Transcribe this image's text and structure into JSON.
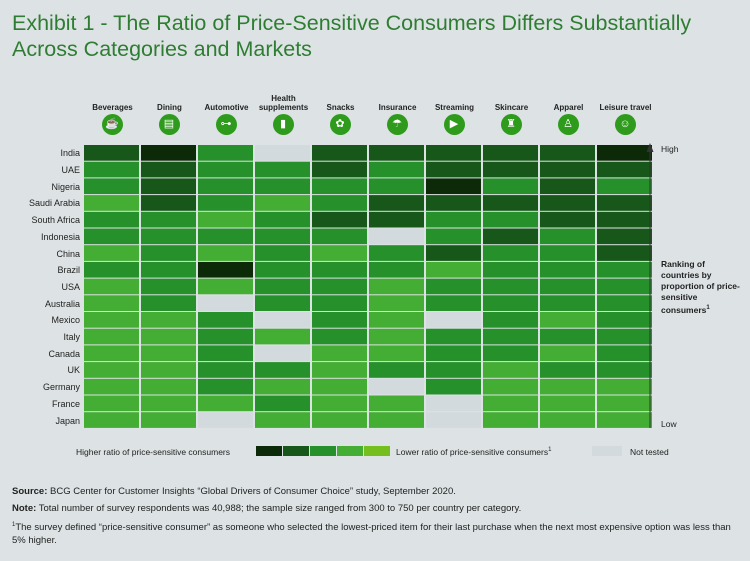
{
  "title": "Exhibit 1 - The Ratio of Price-Sensitive Consumers Differs Substantially Across Categories and Markets",
  "axis": {
    "high_label": "High",
    "low_label": "Low",
    "ranking_label": "Ranking of countries by proportion of price-sensitive consumers",
    "ranking_footnote_mark": "1"
  },
  "legend": {
    "higher_label": "Higher ratio of price-sensitive consumers",
    "lower_label": "Lower ratio of price-sensitive consumers",
    "lower_footnote_mark": "1",
    "not_tested_label": "Not tested"
  },
  "colors": {
    "level_1": "#0c2a08",
    "level_2": "#17581a",
    "level_3": "#26902b",
    "level_4": "#44ad33",
    "level_5": "#74be1e",
    "not_tested": "#d3dade",
    "icon": "#2f9b1d"
  },
  "category_icons": [
    "cup-icon",
    "dining-icon",
    "car-icon",
    "pill-bottle-icon",
    "snack-icon",
    "umbrella-icon",
    "play-icon",
    "lotion-icon",
    "dress-icon",
    "traveler-icon"
  ],
  "category_glyphs": [
    "☕",
    "▤",
    "⊶",
    "▮",
    "✿",
    "☂",
    "▶",
    "♜",
    "♙",
    "☺"
  ],
  "chart_data": {
    "type": "heatmap",
    "title": "Exhibit 1 - The Ratio of Price-Sensitive Consumers Differs Substantially Across Categories and Markets",
    "categories": [
      "Beverages",
      "Dining",
      "Automotive",
      "Health supplements",
      "Snacks",
      "Insurance",
      "Streaming",
      "Skincare",
      "Apparel",
      "Leisure travel"
    ],
    "countries": [
      "India",
      "UAE",
      "Nigeria",
      "Saudi Arabia",
      "South Africa",
      "Indonesia",
      "China",
      "Brazil",
      "USA",
      "Australia",
      "Mexico",
      "Italy",
      "Canada",
      "UK",
      "Germany",
      "France",
      "Japan"
    ],
    "scale": "1 = higher ratio of price-sensitive consumers, 5 = lower ratio, 0 = not tested",
    "values": [
      [
        2,
        1,
        3,
        0,
        2,
        2,
        2,
        2,
        2,
        1
      ],
      [
        3,
        2,
        3,
        3,
        2,
        3,
        2,
        2,
        2,
        2
      ],
      [
        3,
        2,
        3,
        3,
        3,
        3,
        1,
        3,
        2,
        3
      ],
      [
        4,
        2,
        3,
        4,
        3,
        2,
        2,
        2,
        2,
        2
      ],
      [
        3,
        3,
        4,
        3,
        2,
        2,
        3,
        3,
        2,
        2
      ],
      [
        3,
        3,
        3,
        3,
        3,
        0,
        3,
        2,
        3,
        2
      ],
      [
        4,
        3,
        4,
        3,
        4,
        3,
        2,
        3,
        3,
        2
      ],
      [
        3,
        3,
        1,
        3,
        3,
        3,
        4,
        3,
        3,
        3
      ],
      [
        4,
        3,
        4,
        3,
        3,
        4,
        3,
        3,
        3,
        3
      ],
      [
        4,
        3,
        0,
        3,
        3,
        4,
        3,
        3,
        3,
        3
      ],
      [
        4,
        4,
        3,
        0,
        3,
        4,
        0,
        3,
        4,
        3
      ],
      [
        4,
        4,
        3,
        4,
        3,
        4,
        3,
        3,
        3,
        3
      ],
      [
        4,
        4,
        3,
        0,
        4,
        4,
        3,
        3,
        4,
        3
      ],
      [
        4,
        4,
        3,
        3,
        4,
        3,
        3,
        4,
        3,
        3
      ],
      [
        4,
        4,
        3,
        4,
        4,
        0,
        3,
        4,
        4,
        4
      ],
      [
        4,
        4,
        4,
        3,
        4,
        4,
        0,
        4,
        4,
        4
      ],
      [
        4,
        4,
        0,
        4,
        4,
        4,
        0,
        4,
        4,
        4
      ]
    ],
    "legend": [
      "Higher ratio of price-sensitive consumers",
      "Lower ratio of price-sensitive consumers",
      "Not tested"
    ]
  },
  "notes": {
    "source_label": "Source:",
    "source_text": "BCG Center for Customer Insights “Global Drivers of Consumer Choice” study, September 2020.",
    "note_label": "Note:",
    "note_text": "Total number of survey respondents was 40,988; the sample size ranged from 300 to 750 per country per category.",
    "footnote_mark": "1",
    "footnote_text": "The survey defined “price-sensitive consumer” as someone who selected the lowest-priced item for their last purchase when the next most expensive option was less than 5% higher."
  }
}
